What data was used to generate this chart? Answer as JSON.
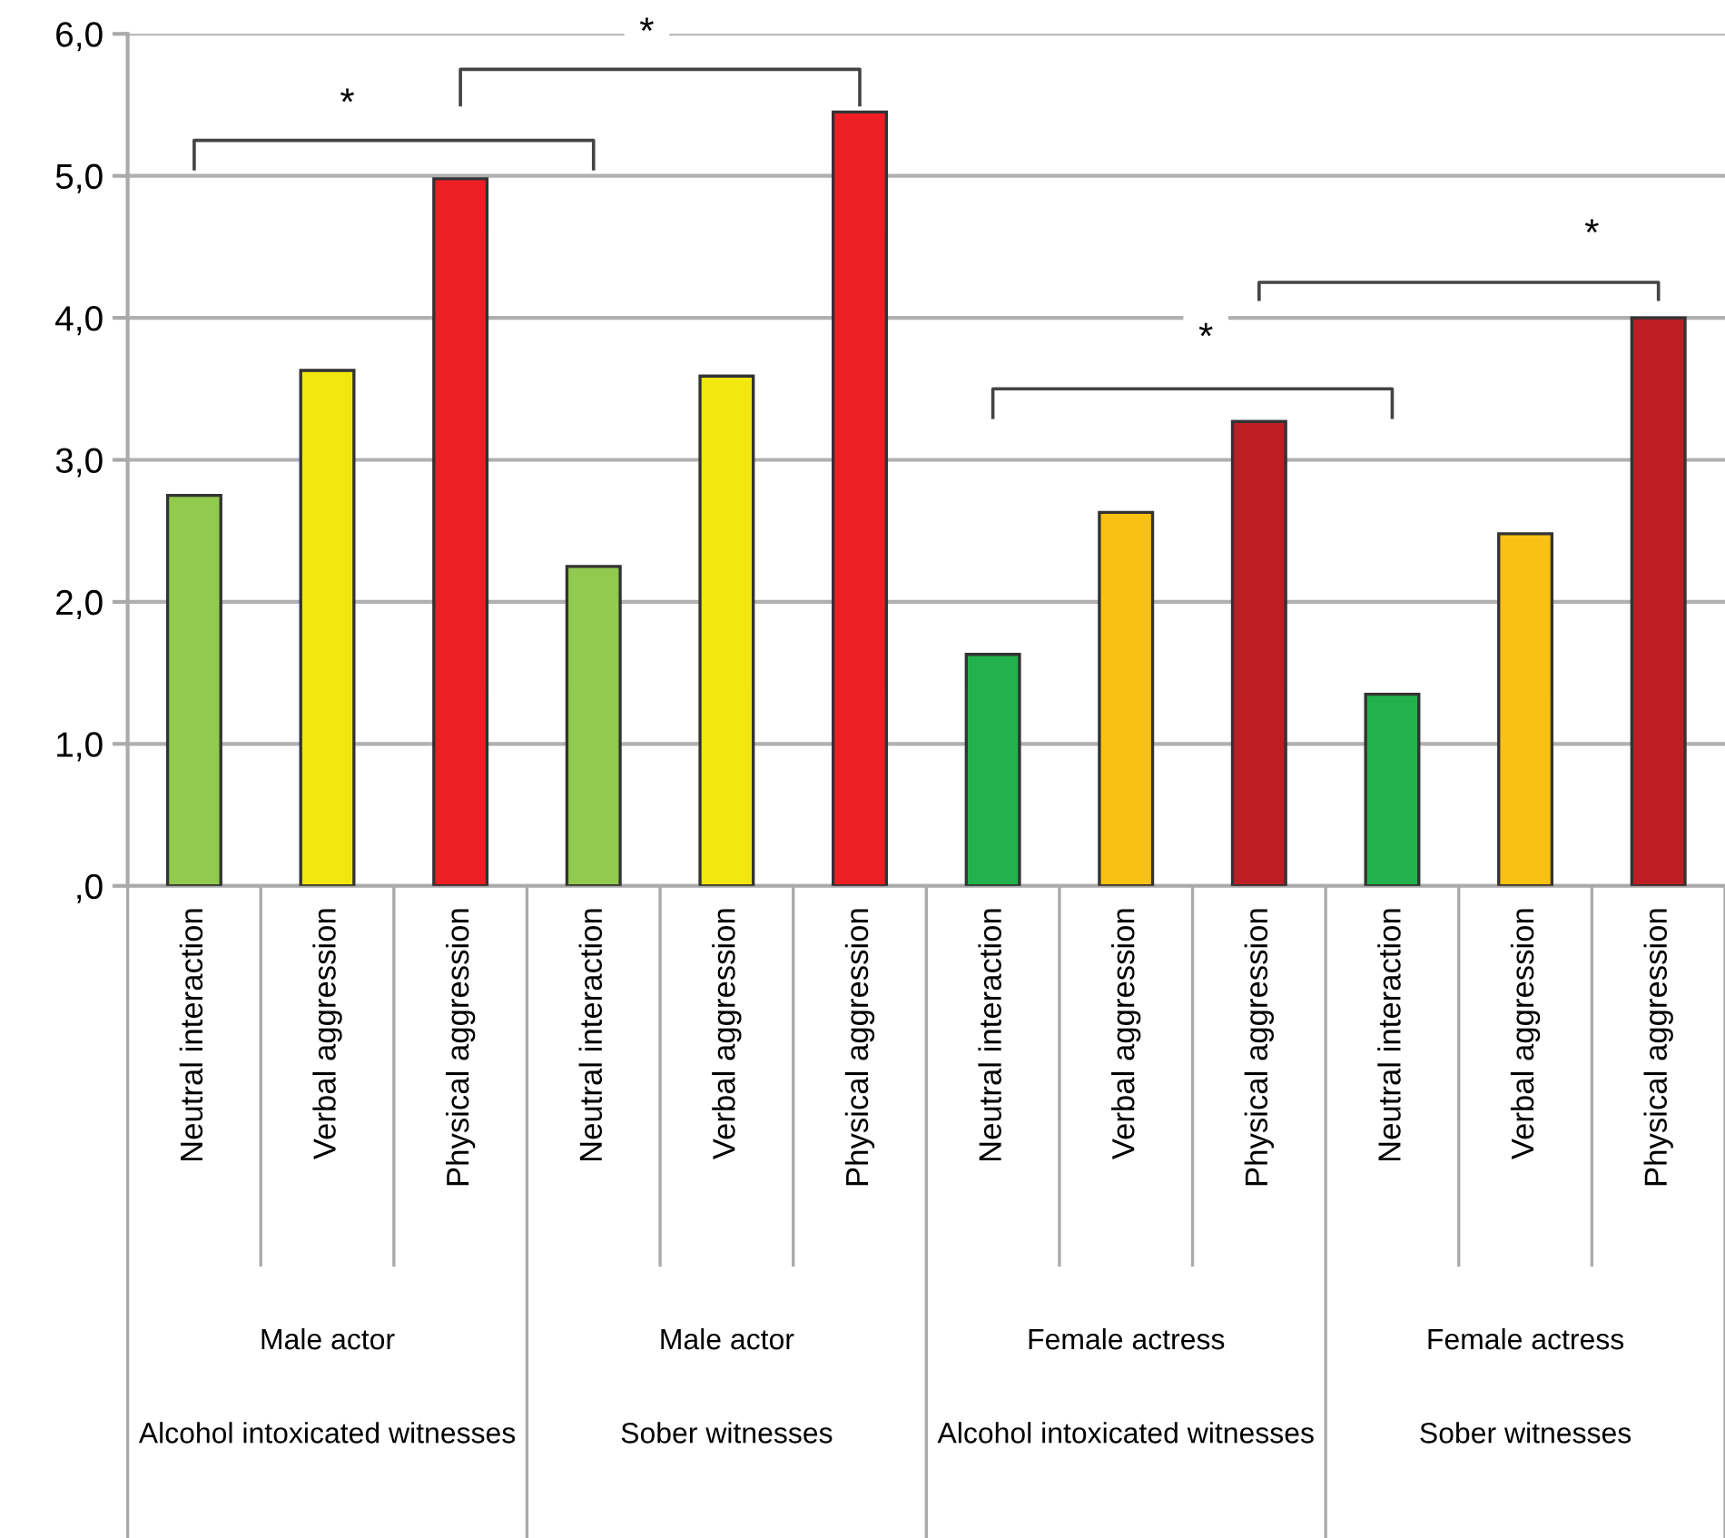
{
  "chart_data": {
    "type": "bar",
    "categories": [
      "Neutral interaction",
      "Verbal aggression",
      "Physical aggression",
      "Neutral interaction",
      "Verbal aggression",
      "Physical aggression",
      "Neutral interaction",
      "Verbal aggression",
      "Physical aggression",
      "Neutral interaction",
      "Verbal aggression",
      "Physical aggression"
    ],
    "values": [
      2.75,
      3.63,
      4.98,
      2.25,
      3.59,
      5.45,
      1.63,
      2.63,
      3.27,
      1.35,
      2.48,
      4.0
    ],
    "colors": [
      "#92c94f",
      "#f2e80f",
      "#ed1f24",
      "#92c94f",
      "#f2e80f",
      "#ed1f24",
      "#23b14d",
      "#fbc014",
      "#bd1e24",
      "#23b14d",
      "#fbc014",
      "#bd1e24"
    ],
    "ylim": [
      0,
      6
    ],
    "yticks": [
      {
        "value": 0,
        "label": ",0"
      },
      {
        "value": 1,
        "label": "1,0"
      },
      {
        "value": 2,
        "label": "2,0"
      },
      {
        "value": 3,
        "label": "3,0"
      },
      {
        "value": 4,
        "label": "4,0"
      },
      {
        "value": 5,
        "label": "5,0"
      },
      {
        "value": 6,
        "label": "6,0"
      }
    ],
    "grid": "y",
    "annotations": [
      "*",
      "*",
      "*",
      "*",
      "Male actor",
      "Male actor",
      "Female actress",
      "Female actress",
      "Alcohol intoxicated witnesses",
      "Sober witnesses",
      "Alcohol intoxicated witnesses",
      "Sober witnesses"
    ]
  }
}
